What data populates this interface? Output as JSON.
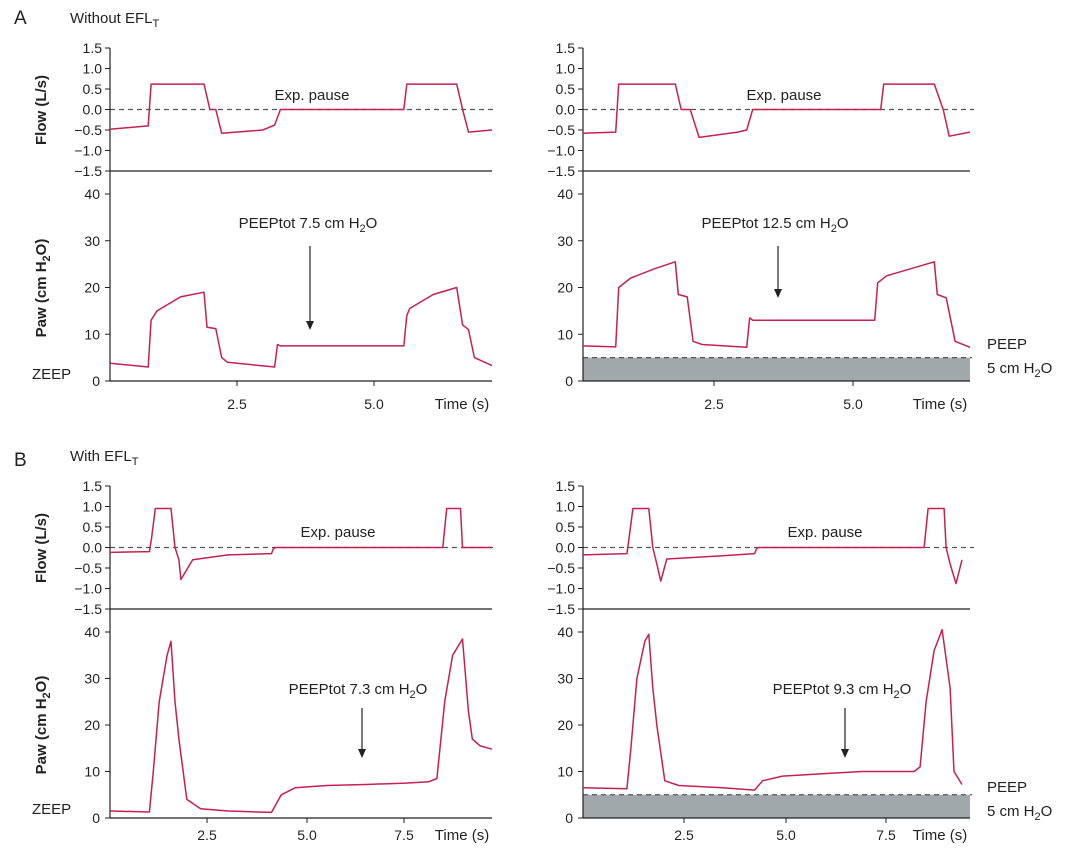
{
  "colors": {
    "trace": "#c4214f",
    "axis": "#222222",
    "baseline": "#555555",
    "peep_band": "#a1a8ab"
  },
  "panels": [
    {
      "letter": "A",
      "condition_text": "Without EFL",
      "condition_sub": "T"
    },
    {
      "letter": "B",
      "condition_text": "With EFL",
      "condition_sub": "T"
    }
  ],
  "labels": {
    "flow_ylabel": "Flow (L/s)",
    "paw_ylabel_main": "Paw (cm H",
    "paw_ylabel_sub": "2",
    "paw_ylabel_tail": "O)",
    "exp_pause": "Exp. pause",
    "zeep": "ZEEP",
    "time_label": "Time (s)",
    "peep_line1": "PEEP",
    "peep_line2_main": "5 cm H",
    "peep_line2_sub": "2",
    "peep_line2_tail": "O"
  },
  "chart_data": [
    {
      "id": "A-left",
      "type": "line",
      "xlim": [
        0,
        6.5
      ],
      "flow_ylim": [
        -1.5,
        1.5
      ],
      "paw_ylim": [
        0,
        40
      ],
      "flow_ticks": [
        "1.5",
        "1.0",
        "0.5",
        "0.0",
        "−0.5",
        "−1.0",
        "−1.5"
      ],
      "paw_ticks": [
        "40",
        "30",
        "20",
        "10",
        "0"
      ],
      "x_ticks": [
        "2.5",
        "5.0"
      ],
      "peep_label": {
        "main": "PEEPtot 7.5 cm H",
        "sub": "2",
        "tail": "O"
      },
      "peep_bg": null,
      "flow": {
        "x": [
          0,
          0.65,
          0.7,
          1.6,
          1.7,
          1.8,
          1.9,
          2.6,
          2.8,
          2.9,
          5,
          5.05,
          5.9,
          6,
          6.1,
          6.5
        ],
        "y": [
          -0.48,
          -0.4,
          0.62,
          0.62,
          0.0,
          0.0,
          -0.58,
          -0.5,
          -0.38,
          0.0,
          0.0,
          0.62,
          0.62,
          0.0,
          -0.55,
          -0.5
        ]
      },
      "paw": {
        "x": [
          0,
          0.65,
          0.7,
          0.8,
          1.2,
          1.6,
          1.65,
          1.8,
          1.9,
          2.0,
          2.8,
          2.85,
          2.9,
          5.0,
          5.05,
          5.1,
          5.5,
          5.9,
          6.0,
          6.1,
          6.2,
          6.5
        ],
        "y": [
          3.8,
          3.0,
          13,
          15,
          18,
          19,
          11.5,
          11.2,
          5,
          4,
          3,
          7.8,
          7.5,
          7.5,
          14,
          15.5,
          18.5,
          20,
          12,
          11,
          5,
          3.3
        ]
      }
    },
    {
      "id": "A-right",
      "type": "line",
      "xlim": [
        0,
        6.5
      ],
      "flow_ylim": [
        -1.5,
        1.5
      ],
      "paw_ylim": [
        0,
        40
      ],
      "flow_ticks": [
        "1.5",
        "1.0",
        "0.5",
        "0.0",
        "−0.5",
        "−1.0",
        "−1.5"
      ],
      "paw_ticks": [
        "40",
        "30",
        "20",
        "10",
        "0"
      ],
      "x_ticks": [
        "2.5",
        "5.0"
      ],
      "peep_label": {
        "main": "PEEPtot 12.5 cm H",
        "sub": "2",
        "tail": "O"
      },
      "peep_bg": 5,
      "flow": {
        "x": [
          0,
          0.55,
          0.6,
          1.55,
          1.65,
          1.8,
          1.95,
          2.6,
          2.75,
          2.85,
          5.0,
          5.05,
          5.9,
          6.05,
          6.15,
          6.5
        ],
        "y": [
          -0.58,
          -0.55,
          0.62,
          0.62,
          0.0,
          0.0,
          -0.68,
          -0.55,
          -0.5,
          0.0,
          0.0,
          0.62,
          0.62,
          0.0,
          -0.65,
          -0.55
        ]
      },
      "paw": {
        "x": [
          0,
          0.55,
          0.6,
          0.8,
          1.2,
          1.55,
          1.6,
          1.75,
          1.85,
          2.0,
          2.75,
          2.8,
          2.85,
          4.9,
          4.95,
          5.1,
          5.5,
          5.9,
          5.95,
          6.1,
          6.25,
          6.5
        ],
        "y": [
          7.5,
          7.3,
          20,
          22,
          24,
          25.5,
          18.5,
          18,
          8.5,
          7.8,
          7.2,
          13.5,
          13,
          13,
          21,
          22.5,
          24,
          25.5,
          18.5,
          17.8,
          8.5,
          7.2
        ]
      }
    },
    {
      "id": "B-left",
      "type": "line",
      "xlim": [
        0,
        9.7
      ],
      "flow_ylim": [
        -1.5,
        1.5
      ],
      "paw_ylim": [
        0,
        40
      ],
      "flow_ticks": [
        "1.5",
        "1.0",
        "0.5",
        "0.0",
        "−0.5",
        "−1.0",
        "−1.5"
      ],
      "paw_ticks": [
        "40",
        "30",
        "20",
        "10",
        "0"
      ],
      "x_ticks": [
        "2.5",
        "5.0",
        "7.5"
      ],
      "peep_label": {
        "main": "PEEPtot 7.3 cm H",
        "sub": "2",
        "tail": "O"
      },
      "peep_bg": null,
      "flow": {
        "x": [
          0,
          1.0,
          1.05,
          1.15,
          1.55,
          1.65,
          1.75,
          1.8,
          2.1,
          3.0,
          4.1,
          4.15,
          4.2,
          8.45,
          8.55,
          8.9,
          8.95,
          9.7
        ],
        "y": [
          -0.12,
          -0.1,
          0.2,
          0.95,
          0.95,
          0.0,
          -0.3,
          -0.78,
          -0.3,
          -0.18,
          -0.15,
          -0.03,
          0.0,
          0.0,
          0.95,
          0.95,
          0.0,
          0.0
        ]
      },
      "paw": {
        "x": [
          0,
          1.0,
          1.1,
          1.25,
          1.45,
          1.55,
          1.65,
          1.75,
          1.95,
          2.3,
          3.0,
          4.1,
          4.35,
          4.7,
          5.5,
          6.5,
          7.5,
          8.1,
          8.3,
          8.5,
          8.7,
          8.95,
          9.1,
          9.2,
          9.4,
          9.7
        ],
        "y": [
          1.5,
          1.3,
          10,
          25,
          35,
          38,
          25,
          17,
          4,
          2,
          1.5,
          1.2,
          5,
          6.5,
          7,
          7.2,
          7.5,
          7.8,
          8.5,
          25,
          35,
          38.5,
          23,
          17,
          15.5,
          14.8
        ]
      }
    },
    {
      "id": "B-right",
      "type": "line",
      "xlim": [
        0,
        9.7
      ],
      "flow_ylim": [
        -1.5,
        1.5
      ],
      "paw_ylim": [
        0,
        40
      ],
      "flow_ticks": [
        "1.5",
        "1.0",
        "0.5",
        "0.0",
        "−0.5",
        "−1.0",
        "−1.5"
      ],
      "paw_ticks": [
        "40",
        "30",
        "20",
        "10",
        "0"
      ],
      "x_ticks": [
        "2.5",
        "5.0",
        "7.5"
      ],
      "peep_label": {
        "main": "PEEPtot 9.3 cm H",
        "sub": "2",
        "tail": "O"
      },
      "peep_bg": 5,
      "flow": {
        "x": [
          0,
          1.1,
          1.15,
          1.25,
          1.65,
          1.75,
          1.85,
          1.95,
          2.1,
          3.5,
          4.3,
          4.35,
          4.4,
          8.55,
          8.65,
          9.05,
          9.1,
          9.2,
          9.35,
          9.5
        ],
        "y": [
          -0.18,
          -0.15,
          0.2,
          0.95,
          0.95,
          0.0,
          -0.4,
          -0.82,
          -0.28,
          -0.2,
          -0.15,
          -0.03,
          0.0,
          0.0,
          0.95,
          0.95,
          0.0,
          -0.4,
          -0.88,
          -0.3
        ]
      },
      "paw": {
        "x": [
          0,
          1.1,
          1.2,
          1.35,
          1.55,
          1.65,
          1.75,
          1.85,
          2.05,
          2.4,
          3.5,
          4.3,
          4.5,
          5.0,
          6.0,
          7.0,
          8.0,
          8.3,
          8.45,
          8.6,
          8.8,
          9.0,
          9.2,
          9.3,
          9.5
        ],
        "y": [
          6.5,
          6.3,
          15,
          30,
          38,
          39.5,
          28,
          20,
          8,
          7,
          6.5,
          6,
          8,
          9,
          9.5,
          10,
          10,
          10,
          11,
          25,
          36,
          40.5,
          28,
          10,
          7.2
        ]
      }
    }
  ]
}
